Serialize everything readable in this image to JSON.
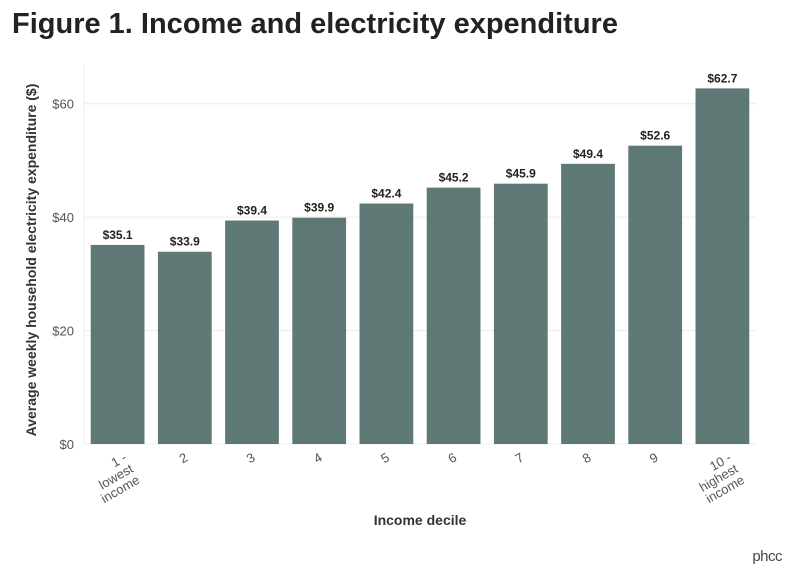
{
  "chart_data": {
    "type": "bar",
    "title": "Figure 1. Income and electricity expenditure",
    "xlabel": "Income decile",
    "ylabel": "Average weekly household electricity expenditure ($)",
    "categories": [
      "1 -\nlowest\nincome",
      "2",
      "3",
      "4",
      "5",
      "6",
      "7",
      "8",
      "9",
      "10 -\nhighest\nincome"
    ],
    "values": [
      35.1,
      33.9,
      39.4,
      39.9,
      42.4,
      45.2,
      45.9,
      49.4,
      52.6,
      62.7
    ],
    "data_labels": [
      "$35.1",
      "$33.9",
      "$39.4",
      "$39.9",
      "$42.4",
      "$45.2",
      "$45.9",
      "$49.4",
      "$52.6",
      "$62.7"
    ],
    "yticks": [
      0,
      20,
      40,
      60
    ],
    "ytick_labels": [
      "$0",
      "$20",
      "$40",
      "$60"
    ],
    "ylim": [
      0,
      67
    ],
    "grid": true,
    "bar_color": "#5e7875"
  },
  "logo": "phcc"
}
